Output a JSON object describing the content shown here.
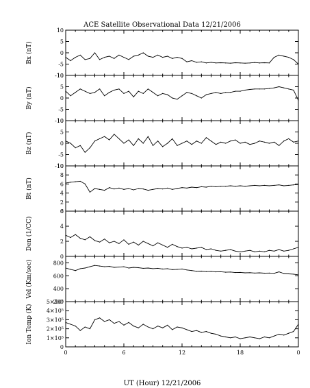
{
  "title": "ACE Satellite Observational Data   12/21/2006",
  "xlabel": "UT (Hour)   12/21/2006",
  "xtick_labels": [
    "0",
    "6",
    "12",
    "18",
    "0"
  ],
  "colors": {
    "line": "#000000",
    "frame": "#000000",
    "background": "#ffffff"
  },
  "chart_data": [
    {
      "type": "line",
      "ylabel": "Bx (nT)",
      "ylim": [
        -10,
        10
      ],
      "yticks": [
        -10,
        -5,
        0,
        5,
        10
      ],
      "ytick_labels": [
        "-10",
        "-5",
        "0",
        "5",
        "10"
      ],
      "xlim": [
        0,
        24
      ],
      "x": [
        0,
        0.5,
        1,
        1.5,
        2,
        2.5,
        3,
        3.5,
        4,
        4.5,
        5,
        5.5,
        6,
        6.5,
        7,
        7.5,
        8,
        8.5,
        9,
        9.5,
        10,
        10.5,
        11,
        11.5,
        12,
        12.5,
        13,
        13.5,
        14,
        14.5,
        15,
        15.5,
        16,
        16.5,
        17,
        17.5,
        18,
        18.5,
        19,
        19.5,
        20,
        20.5,
        21,
        21.5,
        22,
        22.5,
        23,
        23.5,
        24
      ],
      "values": [
        -2,
        -3.5,
        -2,
        -1,
        -3,
        -2.5,
        0,
        -3,
        -2,
        -1.5,
        -2.5,
        -1,
        -2,
        -3,
        -1.5,
        -1,
        0,
        -1.5,
        -2,
        -1,
        -2,
        -1.5,
        -2.5,
        -2,
        -2.5,
        -4,
        -3.5,
        -4.2,
        -4,
        -4.5,
        -4.2,
        -4.5,
        -4.4,
        -4.5,
        -4.6,
        -4.4,
        -4.5,
        -4.6,
        -4.5,
        -4.3,
        -4.5,
        -4.4,
        -4.5,
        -2,
        -1,
        -1.5,
        -2,
        -3,
        -5
      ]
    },
    {
      "type": "line",
      "ylabel": "By (nT)",
      "ylim": [
        -10,
        10
      ],
      "yticks": [
        -10,
        -5,
        0,
        5,
        10
      ],
      "ytick_labels": [
        "-10",
        "-5",
        "0",
        "5",
        "10"
      ],
      "xlim": [
        0,
        24
      ],
      "x": [
        0,
        0.5,
        1,
        1.5,
        2,
        2.5,
        3,
        3.5,
        4,
        4.5,
        5,
        5.5,
        6,
        6.5,
        7,
        7.5,
        8,
        8.5,
        9,
        9.5,
        10,
        10.5,
        11,
        11.5,
        12,
        12.5,
        13,
        13.5,
        14,
        14.5,
        15,
        15.5,
        16,
        16.5,
        17,
        17.5,
        18,
        18.5,
        19,
        19.5,
        20,
        20.5,
        21,
        21.5,
        22,
        22.5,
        23,
        23.5,
        24
      ],
      "values": [
        3,
        1,
        2.5,
        4,
        3,
        2,
        2.5,
        4,
        1,
        2.5,
        3.5,
        4,
        2,
        3,
        0.5,
        3,
        2,
        4,
        2.5,
        1,
        2,
        1.5,
        0,
        -0.5,
        1,
        2.5,
        2,
        1,
        0,
        1.5,
        2,
        2.5,
        2,
        2.5,
        2.5,
        3,
        3,
        3.5,
        3.8,
        4,
        4,
        4,
        4.2,
        4.5,
        5,
        4.5,
        4,
        3.5,
        -1
      ]
    },
    {
      "type": "line",
      "ylabel": "Bz (nT)",
      "ylim": [
        -10,
        10
      ],
      "yticks": [
        -10,
        -5,
        0,
        5,
        10
      ],
      "ytick_labels": [
        "-10",
        "-5",
        "0",
        "5",
        "10"
      ],
      "xlim": [
        0,
        24
      ],
      "x": [
        0,
        0.5,
        1,
        1.5,
        2,
        2.5,
        3,
        3.5,
        4,
        4.5,
        5,
        5.5,
        6,
        6.5,
        7,
        7.5,
        8,
        8.5,
        9,
        9.5,
        10,
        10.5,
        11,
        11.5,
        12,
        12.5,
        13,
        13.5,
        14,
        14.5,
        15,
        15.5,
        16,
        16.5,
        17,
        17.5,
        18,
        18.5,
        19,
        19.5,
        20,
        20.5,
        21,
        21.5,
        22,
        22.5,
        23,
        23.5,
        24
      ],
      "values": [
        1,
        0,
        -2,
        -1,
        -4,
        -2,
        1,
        2,
        3,
        1.5,
        4,
        2,
        0,
        1.5,
        -1,
        2,
        0,
        3,
        -1,
        1,
        -1.5,
        0,
        2,
        -1,
        0,
        1,
        -0.5,
        1,
        0,
        2.5,
        1,
        -0.5,
        0.5,
        0,
        1,
        1.5,
        0,
        0.5,
        -0.5,
        0,
        1,
        0.5,
        0,
        0.5,
        -1,
        1,
        2,
        0.5,
        1
      ]
    },
    {
      "type": "line",
      "ylabel": "Bt (nT)",
      "ylim": [
        0,
        10
      ],
      "yticks": [
        0,
        2,
        4,
        6,
        8,
        10
      ],
      "ytick_labels": [
        "0",
        "2",
        "4",
        "6",
        "8",
        "10"
      ],
      "xlim": [
        0,
        24
      ],
      "x": [
        0,
        0.5,
        1,
        1.5,
        2,
        2.5,
        3,
        3.5,
        4,
        4.5,
        5,
        5.5,
        6,
        6.5,
        7,
        7.5,
        8,
        8.5,
        9,
        9.5,
        10,
        10.5,
        11,
        11.5,
        12,
        12.5,
        13,
        13.5,
        14,
        14.5,
        15,
        15.5,
        16,
        16.5,
        17,
        17.5,
        18,
        18.5,
        19,
        19.5,
        20,
        20.5,
        21,
        21.5,
        22,
        22.5,
        23,
        23.5,
        24
      ],
      "values": [
        6.2,
        6.4,
        6.5,
        6.6,
        6,
        4.2,
        5,
        4.8,
        4.6,
        5.2,
        4.9,
        5.1,
        4.8,
        5,
        4.7,
        5,
        4.9,
        4.6,
        4.8,
        5,
        4.9,
        5.1,
        4.8,
        5,
        5.2,
        5.1,
        5.3,
        5.2,
        5.4,
        5.3,
        5.5,
        5.4,
        5.5,
        5.5,
        5.6,
        5.5,
        5.6,
        5.5,
        5.6,
        5.7,
        5.6,
        5.7,
        5.6,
        5.7,
        5.8,
        5.6,
        5.7,
        5.8,
        5.9
      ]
    },
    {
      "type": "line",
      "ylabel": "Den (1/CC)",
      "ylim": [
        0,
        6
      ],
      "yticks": [
        0,
        2,
        4,
        6
      ],
      "ytick_labels": [
        "0",
        "2",
        "4",
        "6"
      ],
      "xlim": [
        0,
        24
      ],
      "x": [
        0,
        0.5,
        1,
        1.5,
        2,
        2.5,
        3,
        3.5,
        4,
        4.5,
        5,
        5.5,
        6,
        6.5,
        7,
        7.5,
        8,
        8.5,
        9,
        9.5,
        10,
        10.5,
        11,
        11.5,
        12,
        12.5,
        13,
        13.5,
        14,
        14.5,
        15,
        15.5,
        16,
        16.5,
        17,
        17.5,
        18,
        18.5,
        19,
        19.5,
        20,
        20.5,
        21,
        21.5,
        22,
        22.5,
        23,
        23.5,
        24
      ],
      "values": [
        2.8,
        2.5,
        2.9,
        2.4,
        2.2,
        2.6,
        2.1,
        1.9,
        2.3,
        1.8,
        2,
        1.7,
        2.2,
        1.6,
        1.9,
        1.5,
        2,
        1.7,
        1.4,
        1.8,
        1.5,
        1.2,
        1.6,
        1.3,
        1.1,
        1.2,
        1,
        1.1,
        1.2,
        0.9,
        1,
        0.8,
        0.7,
        0.8,
        0.9,
        0.7,
        0.6,
        0.7,
        0.8,
        0.6,
        0.7,
        0.6,
        0.8,
        0.7,
        0.9,
        0.7,
        0.8,
        1,
        1.2
      ]
    },
    {
      "type": "line",
      "ylabel": "Vel (Km/sec)",
      "ylim": [
        200,
        900
      ],
      "yticks": [
        200,
        400,
        600,
        800
      ],
      "ytick_labels": [
        "200",
        "400",
        "600",
        "800"
      ],
      "xlim": [
        0,
        24
      ],
      "x": [
        0,
        0.5,
        1,
        1.5,
        2,
        2.5,
        3,
        3.5,
        4,
        4.5,
        5,
        5.5,
        6,
        6.5,
        7,
        7.5,
        8,
        8.5,
        9,
        9.5,
        10,
        10.5,
        11,
        11.5,
        12,
        12.5,
        13,
        13.5,
        14,
        14.5,
        15,
        15.5,
        16,
        16.5,
        17,
        17.5,
        18,
        18.5,
        19,
        19.5,
        20,
        20.5,
        21,
        21.5,
        22,
        22.5,
        23,
        23.5,
        24
      ],
      "values": [
        720,
        700,
        680,
        710,
        720,
        740,
        760,
        750,
        740,
        745,
        730,
        735,
        740,
        720,
        730,
        725,
        715,
        720,
        710,
        715,
        705,
        710,
        695,
        700,
        705,
        690,
        680,
        670,
        672,
        665,
        668,
        660,
        662,
        655,
        658,
        650,
        652,
        645,
        648,
        642,
        645,
        640,
        642,
        638,
        660,
        635,
        630,
        625,
        615
      ]
    },
    {
      "type": "line",
      "ylabel": "Ion Temp (K)",
      "ylim": [
        0,
        500000
      ],
      "yticks": [
        0,
        100000,
        200000,
        300000,
        400000,
        500000
      ],
      "ytick_labels": [
        "0",
        "1×10⁵",
        "2×10⁵",
        "3×10⁵",
        "4×10⁵",
        "5×10⁵"
      ],
      "xlim": [
        0,
        24
      ],
      "x": [
        0,
        0.5,
        1,
        1.5,
        2,
        2.5,
        3,
        3.5,
        4,
        4.5,
        5,
        5.5,
        6,
        6.5,
        7,
        7.5,
        8,
        8.5,
        9,
        9.5,
        10,
        10.5,
        11,
        11.5,
        12,
        12.5,
        13,
        13.5,
        14,
        14.5,
        15,
        15.5,
        16,
        16.5,
        17,
        17.5,
        18,
        18.5,
        19,
        19.5,
        20,
        20.5,
        21,
        21.5,
        22,
        22.5,
        23,
        23.5,
        24
      ],
      "values": [
        270000,
        250000,
        230000,
        180000,
        220000,
        200000,
        300000,
        320000,
        280000,
        300000,
        260000,
        280000,
        240000,
        270000,
        230000,
        210000,
        250000,
        220000,
        200000,
        230000,
        210000,
        240000,
        190000,
        220000,
        210000,
        190000,
        170000,
        180000,
        160000,
        170000,
        150000,
        140000,
        120000,
        110000,
        100000,
        110000,
        90000,
        100000,
        110000,
        100000,
        90000,
        110000,
        100000,
        120000,
        140000,
        130000,
        150000,
        170000,
        250000
      ]
    }
  ]
}
